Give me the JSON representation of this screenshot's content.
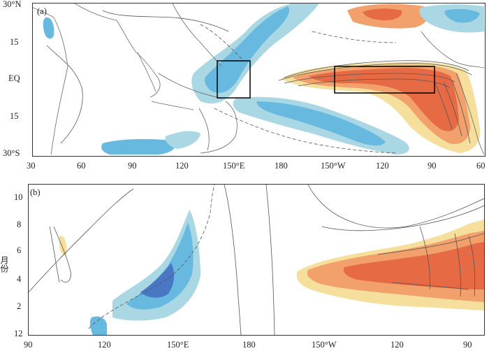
{
  "panel_a": {
    "label": "(a)",
    "y_ticks": [
      "30°N",
      "15",
      "EQ",
      "15",
      "30°S"
    ],
    "x_ticks": [
      "30",
      "60",
      "90",
      "120",
      "150°E",
      "180",
      "150°W",
      "120",
      "90",
      "60"
    ]
  },
  "panel_b": {
    "label": "(b)",
    "y_axis_label": "月份",
    "y_ticks": [
      "10",
      "8",
      "6",
      "4",
      "2",
      "12"
    ],
    "x_ticks": [
      "90",
      "120",
      "150°E",
      "180",
      "150°W",
      "120",
      "90"
    ]
  },
  "colors": {
    "positive_light": "#f6df9c",
    "positive_mid": "#f2a06c",
    "positive_strong": "#e66a43",
    "negative_light": "#a9d8e4",
    "negative_mid": "#67b9df",
    "negative_strong": "#4a77c4",
    "contour": "#555555",
    "land": "#666666"
  }
}
